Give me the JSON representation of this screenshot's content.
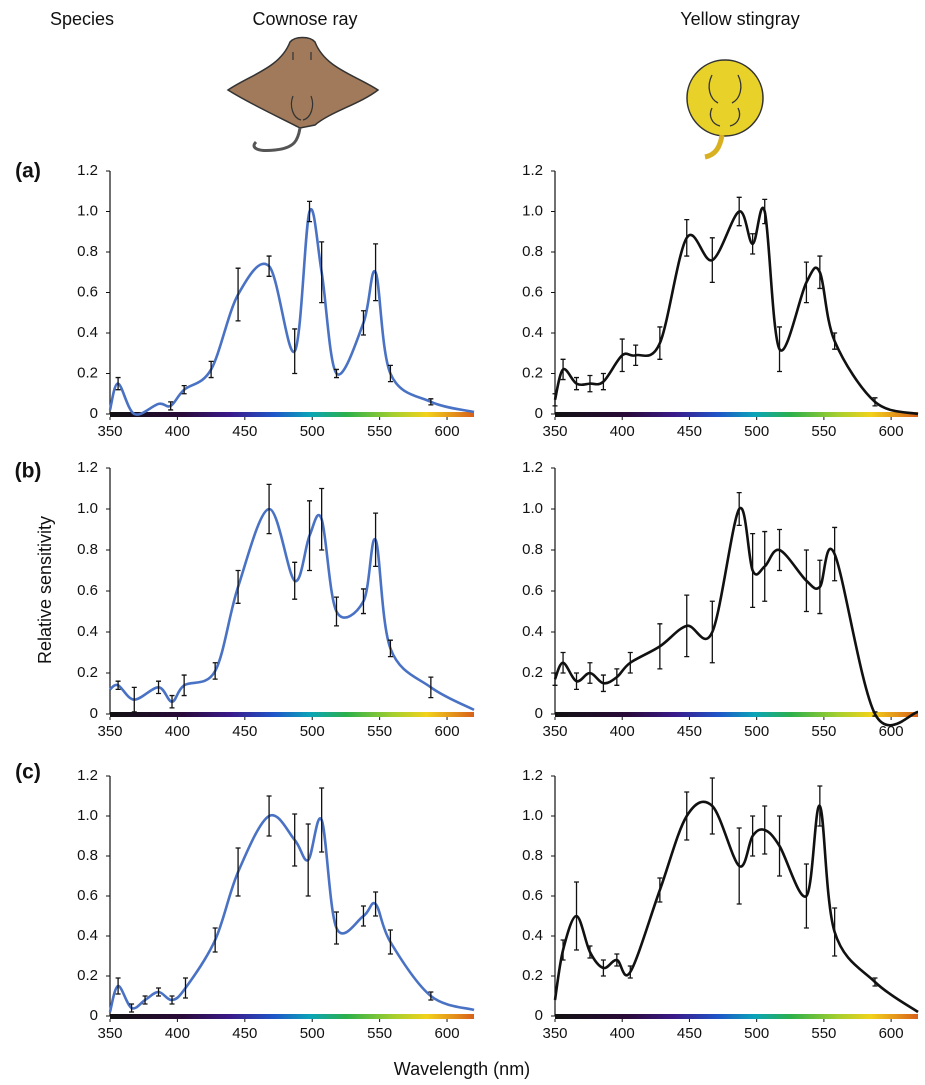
{
  "header": {
    "species": "Species",
    "left": "Cownose ray",
    "right": "Yellow stingray"
  },
  "panel_labels": [
    "(a)",
    "(b)",
    "(c)"
  ],
  "y_label": "Relative sensitivity",
  "x_label": "Wavelength (nm)",
  "chart_data": [
    {
      "type": "line",
      "color": "#4a72c4",
      "xlim": [
        350,
        620
      ],
      "ylim": [
        0,
        1.2
      ],
      "xticks": [
        350,
        400,
        450,
        500,
        550,
        600
      ],
      "yticks": [
        0,
        0.2,
        0.4,
        0.6,
        0.8,
        {
          "value": 1,
          "label": "1.0"
        },
        1.2
      ],
      "x": [
        350,
        356,
        368,
        386,
        395,
        405,
        425,
        445,
        468,
        487,
        498,
        507,
        518,
        538,
        547,
        558,
        588,
        620
      ],
      "values": [
        0.02,
        0.15,
        0,
        0.05,
        0.04,
        0.12,
        0.22,
        0.59,
        0.73,
        0.31,
        1.0,
        0.7,
        0.2,
        0.45,
        0.7,
        0.2,
        0.06,
        0.01
      ],
      "errors": [
        null,
        0.03,
        null,
        null,
        0.02,
        0.02,
        0.04,
        0.13,
        0.05,
        0.11,
        0.05,
        0.15,
        0.02,
        0.06,
        0.14,
        0.04,
        0.015,
        null
      ]
    },
    {
      "type": "line",
      "color": "#111111",
      "xlim": [
        350,
        620
      ],
      "ylim": [
        0,
        1.2
      ],
      "xticks": [
        350,
        400,
        450,
        500,
        550,
        600
      ],
      "yticks": [
        0,
        0.2,
        0.4,
        0.6,
        0.8,
        {
          "value": 1,
          "label": "1.0"
        },
        1.2
      ],
      "x": [
        350,
        356,
        366,
        376,
        386,
        400,
        410,
        428,
        448,
        467,
        487,
        497,
        506,
        517,
        537,
        547,
        558,
        588,
        620
      ],
      "values": [
        0.07,
        0.22,
        0.15,
        0.15,
        0.16,
        0.29,
        0.29,
        0.35,
        0.87,
        0.76,
        1.0,
        0.84,
        1.0,
        0.32,
        0.65,
        0.7,
        0.36,
        0.06,
        0
      ],
      "errors": [
        0.03,
        0.05,
        0.03,
        0.04,
        0.04,
        0.08,
        0.05,
        0.08,
        0.09,
        0.11,
        0.07,
        0.05,
        0.06,
        0.11,
        0.1,
        0.08,
        0.04,
        0.02,
        null
      ]
    },
    {
      "type": "line",
      "color": "#4a72c4",
      "xlim": [
        350,
        620
      ],
      "ylim": [
        0,
        1.2
      ],
      "xticks": [
        350,
        400,
        450,
        500,
        550,
        600
      ],
      "yticks": [
        0,
        0.2,
        0.4,
        0.6,
        0.8,
        {
          "value": 1,
          "label": "1.0"
        },
        1.2
      ],
      "x": [
        350,
        356,
        368,
        386,
        396,
        405,
        428,
        445,
        468,
        487,
        498,
        507,
        518,
        538,
        547,
        558,
        588,
        620
      ],
      "values": [
        0.12,
        0.14,
        0.07,
        0.13,
        0.06,
        0.14,
        0.21,
        0.62,
        1.0,
        0.65,
        0.87,
        0.95,
        0.5,
        0.55,
        0.85,
        0.32,
        0.13,
        0.02
      ],
      "errors": [
        null,
        0.02,
        0.06,
        0.03,
        0.03,
        0.05,
        0.04,
        0.08,
        0.12,
        0.09,
        0.17,
        0.15,
        0.07,
        0.06,
        0.13,
        0.04,
        0.05,
        null
      ]
    },
    {
      "type": "line",
      "color": "#111111",
      "xlim": [
        350,
        620
      ],
      "ylim": [
        0,
        1.2
      ],
      "xticks": [
        350,
        400,
        450,
        500,
        550,
        600
      ],
      "yticks": [
        0,
        0.2,
        0.4,
        0.6,
        0.8,
        {
          "value": 1,
          "label": "1.0"
        },
        1.2
      ],
      "x": [
        350,
        356,
        366,
        376,
        386,
        396,
        406,
        428,
        448,
        467,
        487,
        497,
        506,
        517,
        537,
        547,
        558,
        588,
        620
      ],
      "values": [
        0.17,
        0.25,
        0.16,
        0.2,
        0.15,
        0.18,
        0.25,
        0.33,
        0.43,
        0.4,
        1.0,
        0.7,
        0.72,
        0.8,
        0.65,
        0.62,
        0.78,
        0,
        0.01
      ],
      "errors": [
        0.03,
        0.05,
        0.04,
        0.05,
        0.04,
        0.04,
        0.05,
        0.11,
        0.15,
        0.15,
        0.08,
        0.18,
        0.17,
        0.1,
        0.15,
        0.13,
        0.13,
        0.01,
        null
      ]
    },
    {
      "type": "line",
      "color": "#4a72c4",
      "xlim": [
        350,
        620
      ],
      "ylim": [
        0,
        1.2
      ],
      "xticks": [
        350,
        400,
        450,
        500,
        550,
        600
      ],
      "yticks": [
        0,
        0.2,
        0.4,
        0.6,
        0.8,
        {
          "value": 1,
          "label": "1.0"
        },
        1.2
      ],
      "x": [
        350,
        356,
        366,
        376,
        386,
        396,
        406,
        428,
        445,
        468,
        487,
        497,
        507,
        518,
        538,
        547,
        558,
        588,
        620
      ],
      "values": [
        0.02,
        0.15,
        0.04,
        0.08,
        0.12,
        0.08,
        0.14,
        0.38,
        0.72,
        1.0,
        0.88,
        0.78,
        0.98,
        0.44,
        0.5,
        0.56,
        0.37,
        0.1,
        0.03
      ],
      "errors": [
        null,
        0.04,
        0.02,
        0.02,
        0.02,
        0.02,
        0.05,
        0.06,
        0.12,
        0.1,
        0.13,
        0.18,
        0.16,
        0.08,
        0.05,
        0.06,
        0.06,
        0.02,
        null
      ]
    },
    {
      "type": "line",
      "color": "#111111",
      "xlim": [
        350,
        620
      ],
      "ylim": [
        0,
        1.2
      ],
      "xticks": [
        350,
        400,
        450,
        500,
        550,
        600
      ],
      "yticks": [
        0,
        0.2,
        0.4,
        0.6,
        0.8,
        {
          "value": 1,
          "label": "1.0"
        },
        1.2
      ],
      "x": [
        350,
        356,
        366,
        376,
        386,
        396,
        406,
        428,
        448,
        467,
        487,
        497,
        506,
        517,
        537,
        547,
        558,
        588,
        620
      ],
      "values": [
        0.08,
        0.33,
        0.5,
        0.32,
        0.24,
        0.28,
        0.22,
        0.63,
        1.0,
        1.05,
        0.75,
        0.9,
        0.93,
        0.85,
        0.6,
        1.05,
        0.42,
        0.17,
        0.02
      ],
      "errors": [
        null,
        0.05,
        0.17,
        0.03,
        0.04,
        0.03,
        0.03,
        0.06,
        0.12,
        0.14,
        0.19,
        0.1,
        0.12,
        0.15,
        0.16,
        0.1,
        0.12,
        0.02,
        null
      ]
    }
  ]
}
